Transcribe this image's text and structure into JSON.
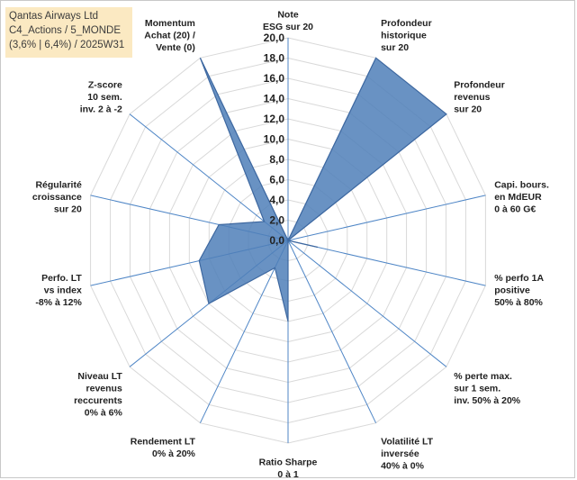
{
  "title_lines": [
    "Qantas Airways Ltd",
    "C4_Actions / 5_MONDE",
    "(3,6% | 6,4%) / 2025W31"
  ],
  "chart_data": {
    "type": "radar",
    "range": [
      0,
      20
    ],
    "grid": true,
    "tick_labels": [
      "0,0",
      "2,0",
      "4,0",
      "6,0",
      "8,0",
      "10,0",
      "12,0",
      "14,0",
      "16,0",
      "18,0",
      "20,0"
    ],
    "axes": [
      {
        "label": [
          "Note",
          "ESG sur 20"
        ],
        "value": 0
      },
      {
        "label": [
          "Profondeur",
          "historique",
          "sur 20"
        ],
        "value": 20
      },
      {
        "label": [
          "Profondeur",
          "revenus",
          "sur 20"
        ],
        "value": 20
      },
      {
        "label": [
          "Capi. bours.",
          "en MdEUR",
          "0 à 60 G€"
        ],
        "value": 0
      },
      {
        "label": [
          "% perfo 1A",
          "positive",
          "50% à 80%"
        ],
        "value": 3
      },
      {
        "label": [
          "% perte max.",
          "sur 1 sem.",
          "inv. 50% à 20%"
        ],
        "value": 0
      },
      {
        "label": [
          "Volatilité LT",
          "inversée",
          "40% à 0%"
        ],
        "value": 0
      },
      {
        "label": [
          "Ratio Sharpe",
          "0 à 1"
        ],
        "value": 8
      },
      {
        "label": [
          "Rendement LT",
          "0% à 20%"
        ],
        "value": 3
      },
      {
        "label": [
          "Niveau LT",
          "revenus",
          "reccurents",
          "0% à 6%"
        ],
        "value": 10
      },
      {
        "label": [
          "Perfo. LT",
          "vs index",
          "-8% à 12%"
        ],
        "value": 9
      },
      {
        "label": [
          "Régularité",
          "croissance",
          "sur 20"
        ],
        "value": 7
      },
      {
        "label": [
          "Z-score",
          "10 sem.",
          "inv. 2 à -2"
        ],
        "value": 3
      },
      {
        "label": [
          "Momentum",
          "Achat (20) /",
          "Vente (0)"
        ],
        "value": 20
      }
    ],
    "colors": {
      "fill": "#4f7fb9",
      "stroke": "#3e68a0",
      "grid": "#d9d9d9",
      "spoke": "#4f86c6"
    }
  }
}
